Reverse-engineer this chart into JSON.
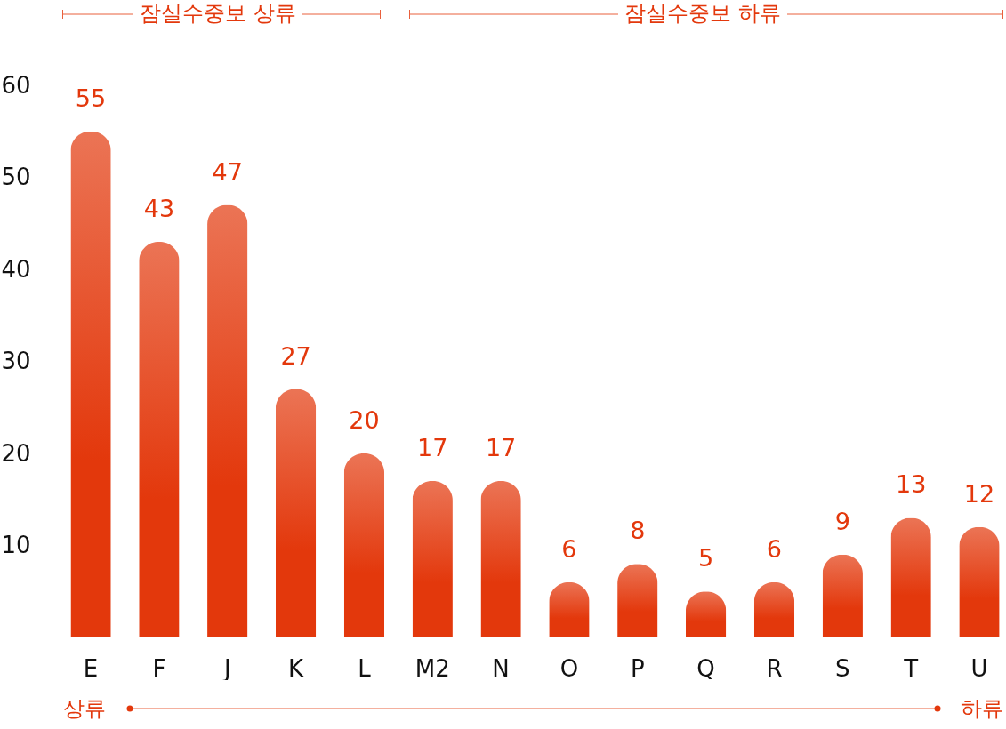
{
  "chart_data": {
    "type": "bar",
    "categories": [
      "E",
      "F",
      "J",
      "K",
      "L",
      "M2",
      "N",
      "O",
      "P",
      "Q",
      "R",
      "S",
      "T",
      "U"
    ],
    "values": [
      55,
      43,
      47,
      27,
      20,
      17,
      17,
      6,
      8,
      5,
      6,
      9,
      13,
      12
    ],
    "color": "#e3380c",
    "ylim": [
      0,
      60
    ],
    "yticks": [
      10,
      20,
      30,
      40,
      50,
      60
    ],
    "grid": false,
    "data_labels": true,
    "annotations": [
      "잠실수중보 상류",
      "잠실수중보 하류",
      "상류",
      "하류"
    ]
  }
}
